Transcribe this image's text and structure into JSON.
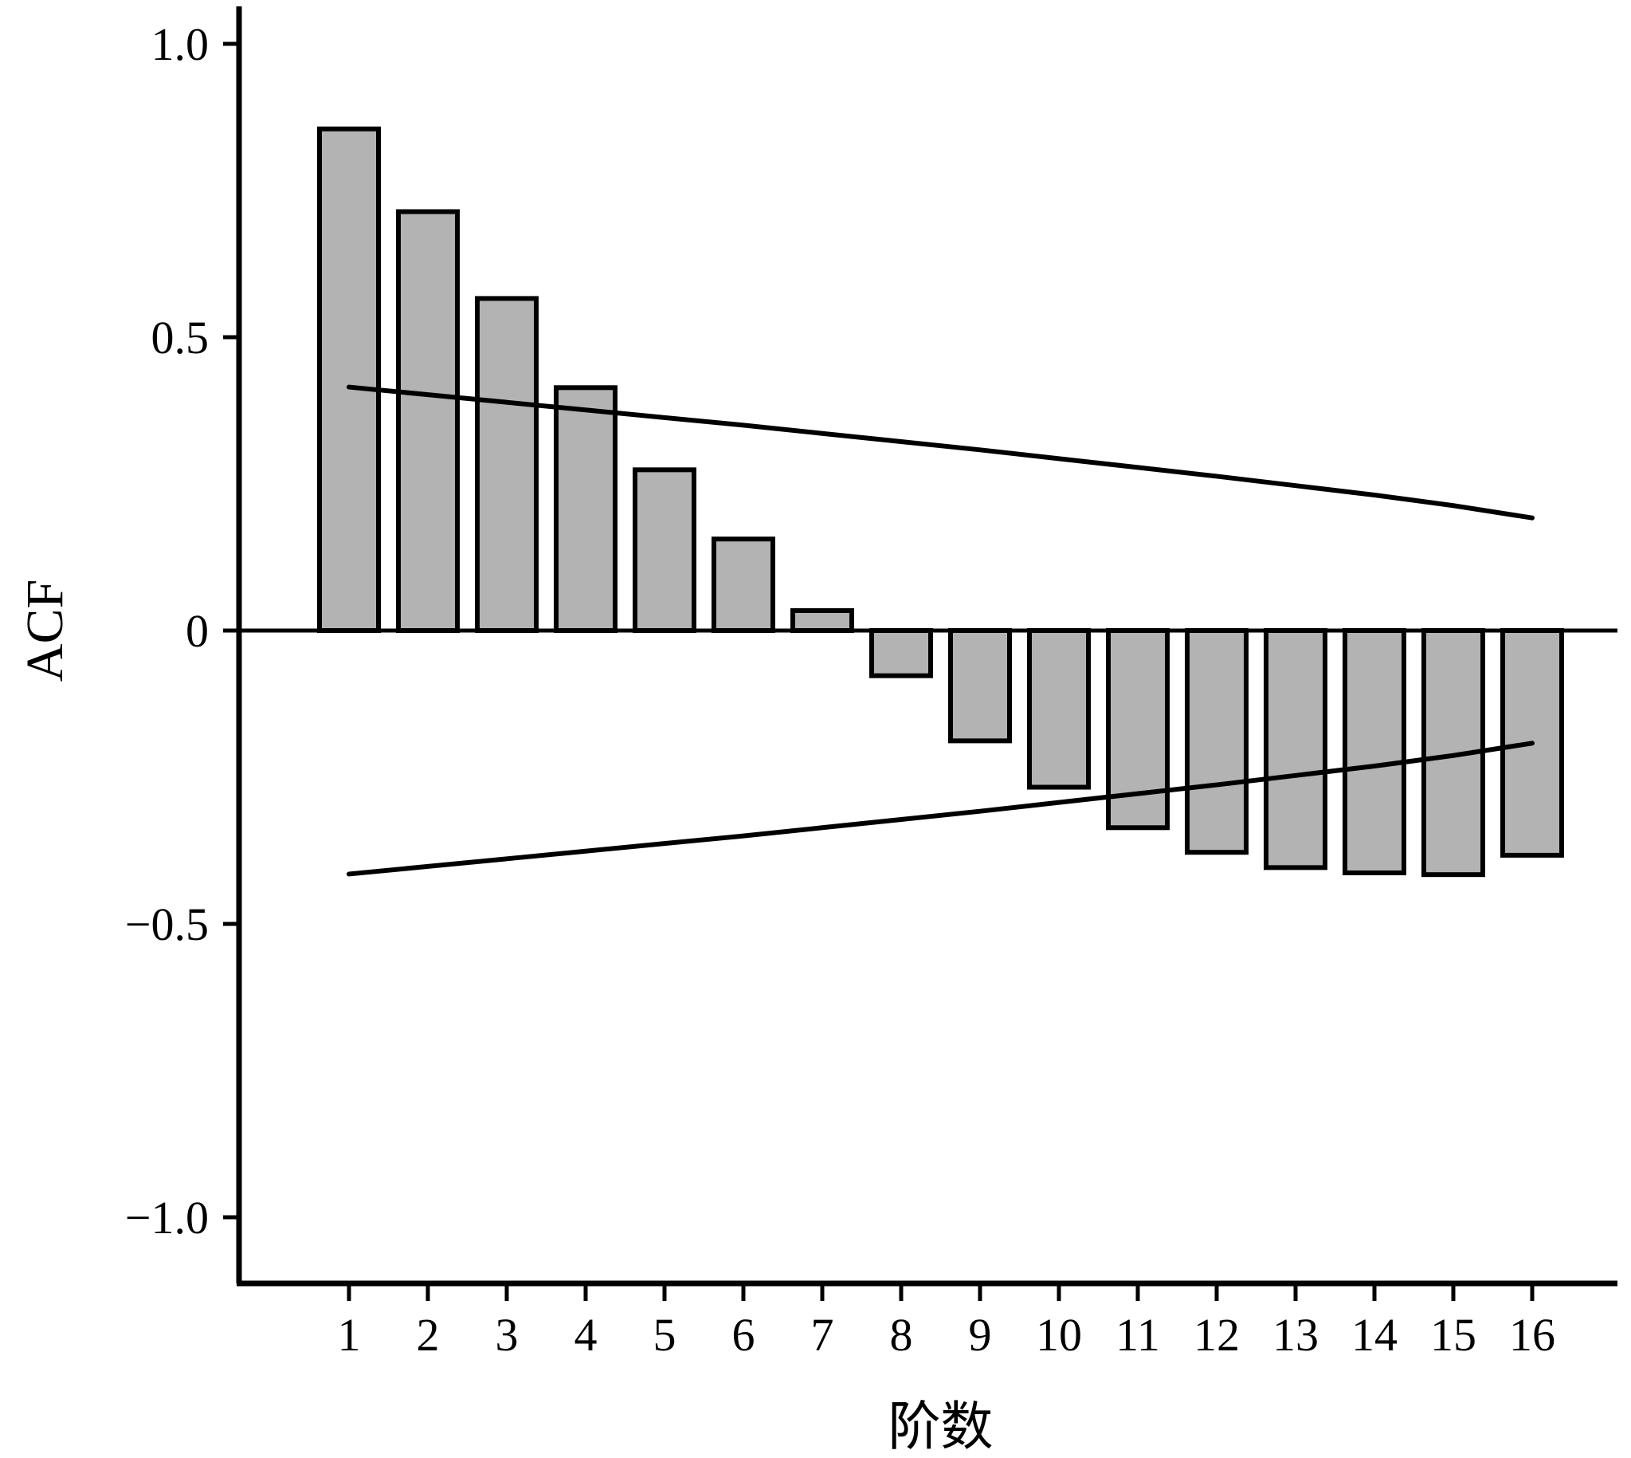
{
  "chart_data": {
    "type": "bar",
    "xlabel": "阶数",
    "ylabel": "ACF",
    "ylim": [
      -1.1,
      1.05
    ],
    "yticks": [
      1.0,
      0.5,
      0,
      -0.5,
      -1.0
    ],
    "ytick_labels": [
      "1.0",
      "0.5",
      "0",
      "−0.5",
      "−1.0"
    ],
    "categories": [
      "1",
      "2",
      "3",
      "4",
      "5",
      "6",
      "7",
      "8",
      "9",
      "10",
      "11",
      "12",
      "13",
      "14",
      "15",
      "16"
    ],
    "values": [
      0.855,
      0.714,
      0.566,
      0.414,
      0.274,
      0.156,
      0.034,
      -0.077,
      -0.188,
      -0.267,
      -0.336,
      -0.378,
      -0.404,
      -0.413,
      -0.416,
      -0.383
    ],
    "confidence_upper": [
      0.415,
      0.402,
      0.389,
      0.376,
      0.363,
      0.35,
      0.336,
      0.322,
      0.308,
      0.293,
      0.278,
      0.263,
      0.247,
      0.231,
      0.213,
      0.192
    ],
    "confidence_lower": [
      -0.415,
      -0.402,
      -0.389,
      -0.376,
      -0.363,
      -0.35,
      -0.336,
      -0.322,
      -0.308,
      -0.293,
      -0.278,
      -0.263,
      -0.247,
      -0.231,
      -0.213,
      -0.192
    ],
    "bar_color": "#b3b3b3",
    "edge_color": "#000000",
    "grid": false,
    "legend": "none"
  }
}
